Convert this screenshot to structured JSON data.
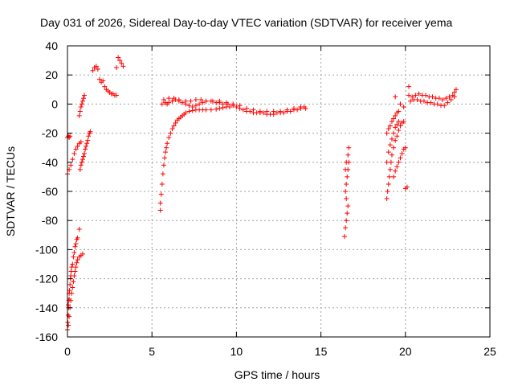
{
  "chart_data": {
    "type": "scatter",
    "title": "Day 031 of 2026, Sidereal Day-to-day VTEC variation (SDTVAR) for receiver yema",
    "xlabel": "GPS time / hours",
    "ylabel": "SDTVAR / TECUs",
    "xlim": [
      0,
      25
    ],
    "ylim": [
      -160,
      40
    ],
    "xticks": [
      0,
      5,
      10,
      15,
      20,
      25
    ],
    "yticks": [
      -160,
      -140,
      -120,
      -100,
      -80,
      -60,
      -40,
      -20,
      0,
      20,
      40
    ],
    "grid": true,
    "marker": "plus",
    "series": [
      {
        "name": "SDTVAR",
        "color": "#ff0000",
        "points": [
          [
            0.0,
            -23
          ],
          [
            0.05,
            -22
          ],
          [
            0.1,
            -23
          ],
          [
            0.15,
            -22
          ],
          [
            0.0,
            -48
          ],
          [
            0.1,
            -45
          ],
          [
            0.2,
            -42
          ],
          [
            0.3,
            -38
          ],
          [
            0.4,
            -34
          ],
          [
            0.5,
            -31
          ],
          [
            0.6,
            -29
          ],
          [
            0.7,
            -27
          ],
          [
            0.8,
            -26
          ],
          [
            0.0,
            -155
          ],
          [
            0.02,
            -150
          ],
          [
            0.04,
            -145
          ],
          [
            0.06,
            -140
          ],
          [
            0.08,
            -135
          ],
          [
            0.1,
            -130
          ],
          [
            0.12,
            -128
          ],
          [
            0.15,
            -124
          ],
          [
            0.18,
            -120
          ],
          [
            0.2,
            -118
          ],
          [
            0.22,
            -115
          ],
          [
            0.25,
            -112
          ],
          [
            0.3,
            -110
          ],
          [
            0.35,
            -105
          ],
          [
            0.4,
            -102
          ],
          [
            0.45,
            -98
          ],
          [
            0.5,
            -96
          ],
          [
            0.55,
            -93
          ],
          [
            0.6,
            -92
          ],
          [
            0.05,
            -152
          ],
          [
            0.1,
            -146
          ],
          [
            0.15,
            -140
          ],
          [
            0.2,
            -135
          ],
          [
            0.25,
            -130
          ],
          [
            0.3,
            -126
          ],
          [
            0.35,
            -122
          ],
          [
            0.4,
            -118
          ],
          [
            0.45,
            -115
          ],
          [
            0.5,
            -112
          ],
          [
            0.55,
            -109
          ],
          [
            0.6,
            -107
          ],
          [
            0.7,
            -105
          ],
          [
            0.8,
            -104
          ],
          [
            0.9,
            -103
          ],
          [
            0.7,
            -86
          ],
          [
            0.05,
            -138
          ],
          [
            0.1,
            -134
          ],
          [
            0.75,
            -45
          ],
          [
            0.8,
            -42
          ],
          [
            0.85,
            -40
          ],
          [
            0.9,
            -38
          ],
          [
            0.95,
            -36
          ],
          [
            1.0,
            -34
          ],
          [
            1.05,
            -31
          ],
          [
            1.1,
            -29
          ],
          [
            1.15,
            -27
          ],
          [
            1.2,
            -25
          ],
          [
            1.25,
            -22
          ],
          [
            1.3,
            -20
          ],
          [
            1.35,
            -19
          ],
          [
            0.7,
            -8
          ],
          [
            0.75,
            -5
          ],
          [
            0.8,
            -2
          ],
          [
            0.85,
            0
          ],
          [
            0.9,
            2
          ],
          [
            0.95,
            4
          ],
          [
            1.0,
            6
          ],
          [
            1.5,
            23
          ],
          [
            1.6,
            25
          ],
          [
            1.7,
            26
          ],
          [
            1.8,
            24
          ],
          [
            1.9,
            17
          ],
          [
            2.0,
            15
          ],
          [
            2.1,
            16
          ],
          [
            2.2,
            12
          ],
          [
            2.3,
            10
          ],
          [
            2.4,
            9
          ],
          [
            2.5,
            8
          ],
          [
            2.6,
            7
          ],
          [
            2.7,
            7
          ],
          [
            2.8,
            6
          ],
          [
            2.9,
            6
          ],
          [
            2.9,
            25
          ],
          [
            3.0,
            32
          ],
          [
            3.1,
            30
          ],
          [
            3.2,
            28
          ],
          [
            3.3,
            26
          ],
          [
            5.5,
            -73
          ],
          [
            5.5,
            -68
          ],
          [
            5.55,
            -62
          ],
          [
            5.6,
            -55
          ],
          [
            5.65,
            -48
          ],
          [
            5.7,
            -42
          ],
          [
            5.75,
            -37
          ],
          [
            5.8,
            -33
          ],
          [
            5.85,
            -30
          ],
          [
            5.9,
            -27
          ],
          [
            6.0,
            -23
          ],
          [
            6.1,
            -20
          ],
          [
            6.2,
            -17
          ],
          [
            6.3,
            -15
          ],
          [
            6.4,
            -13
          ],
          [
            6.5,
            -11
          ],
          [
            6.6,
            -10
          ],
          [
            6.7,
            -9
          ],
          [
            6.8,
            -8
          ],
          [
            6.9,
            -7
          ],
          [
            7.0,
            -6
          ],
          [
            7.2,
            -5
          ],
          [
            7.4,
            -4.5
          ],
          [
            7.6,
            -4
          ],
          [
            7.8,
            -4
          ],
          [
            8.0,
            -4
          ],
          [
            8.2,
            -4
          ],
          [
            8.5,
            -4
          ],
          [
            8.8,
            -3.5
          ],
          [
            9.0,
            -3
          ],
          [
            9.2,
            -2.5
          ],
          [
            9.4,
            -2
          ],
          [
            9.6,
            -2
          ],
          [
            5.6,
            0
          ],
          [
            5.7,
            3
          ],
          [
            5.8,
            1
          ],
          [
            5.9,
            0
          ],
          [
            6.0,
            1
          ],
          [
            6.2,
            2
          ],
          [
            6.4,
            3
          ],
          [
            6.6,
            2
          ],
          [
            6.8,
            1
          ],
          [
            7.0,
            0
          ],
          [
            7.2,
            -1
          ],
          [
            7.4,
            -2
          ],
          [
            7.6,
            -1
          ],
          [
            7.8,
            0
          ],
          [
            8.0,
            1
          ],
          [
            8.2,
            2
          ],
          [
            8.5,
            2
          ],
          [
            8.8,
            1
          ],
          [
            9.0,
            1
          ],
          [
            9.2,
            0
          ],
          [
            9.5,
            0
          ],
          [
            9.8,
            -1
          ],
          [
            10.0,
            -2
          ],
          [
            10.2,
            -3
          ],
          [
            10.4,
            -4
          ],
          [
            10.6,
            -5
          ],
          [
            10.8,
            -5
          ],
          [
            11.0,
            -6
          ],
          [
            11.2,
            -6
          ],
          [
            11.4,
            -6
          ],
          [
            11.6,
            -6
          ],
          [
            11.8,
            -7
          ],
          [
            12.0,
            -7
          ],
          [
            12.2,
            -7
          ],
          [
            12.4,
            -6
          ],
          [
            12.6,
            -6
          ],
          [
            12.8,
            -6
          ],
          [
            13.0,
            -5
          ],
          [
            13.2,
            -5
          ],
          [
            13.4,
            -4
          ],
          [
            13.6,
            -4
          ],
          [
            13.8,
            -3
          ],
          [
            14.0,
            -2
          ],
          [
            14.1,
            -3
          ],
          [
            6.0,
            4
          ],
          [
            6.3,
            4
          ],
          [
            6.6,
            3
          ],
          [
            7.0,
            2
          ],
          [
            7.3,
            2
          ],
          [
            7.6,
            3
          ],
          [
            7.9,
            3
          ],
          [
            8.2,
            2
          ],
          [
            8.6,
            2
          ],
          [
            9.0,
            2
          ],
          [
            9.4,
            1
          ],
          [
            9.8,
            0
          ],
          [
            10.2,
            -1
          ],
          [
            10.6,
            -3
          ],
          [
            11.0,
            -4
          ],
          [
            11.4,
            -5
          ],
          [
            11.8,
            -5
          ],
          [
            12.2,
            -5
          ],
          [
            12.6,
            -5
          ],
          [
            13.0,
            -4
          ],
          [
            13.4,
            -3
          ],
          [
            13.8,
            -2
          ],
          [
            16.4,
            -91
          ],
          [
            16.45,
            -85
          ],
          [
            16.5,
            -80
          ],
          [
            16.55,
            -75
          ],
          [
            16.6,
            -70
          ],
          [
            16.5,
            -65
          ],
          [
            16.45,
            -60
          ],
          [
            16.5,
            -55
          ],
          [
            16.55,
            -50
          ],
          [
            16.6,
            -45
          ],
          [
            16.65,
            -40
          ],
          [
            16.6,
            -35
          ],
          [
            16.65,
            -30
          ],
          [
            16.5,
            -40
          ],
          [
            16.45,
            -45
          ],
          [
            18.9,
            -65
          ],
          [
            18.95,
            -60
          ],
          [
            19.0,
            -55
          ],
          [
            19.05,
            -50
          ],
          [
            19.1,
            -45
          ],
          [
            19.15,
            -40
          ],
          [
            19.2,
            -35
          ],
          [
            19.3,
            -30
          ],
          [
            19.4,
            -25
          ],
          [
            19.5,
            -22
          ],
          [
            19.6,
            -18
          ],
          [
            19.7,
            -15
          ],
          [
            19.8,
            -13
          ],
          [
            19.9,
            -12
          ],
          [
            18.9,
            -40
          ],
          [
            19.0,
            -33
          ],
          [
            19.1,
            -28
          ],
          [
            19.2,
            -24
          ],
          [
            19.3,
            -20
          ],
          [
            19.4,
            -16
          ],
          [
            19.5,
            -14
          ],
          [
            19.6,
            -12
          ],
          [
            18.9,
            -20
          ],
          [
            19.0,
            -17
          ],
          [
            19.1,
            -15
          ],
          [
            19.2,
            -12
          ],
          [
            19.3,
            -10
          ],
          [
            19.4,
            -8
          ],
          [
            19.5,
            -6
          ],
          [
            19.6,
            -5
          ],
          [
            19.3,
            -50
          ],
          [
            19.4,
            -46
          ],
          [
            19.5,
            -43
          ],
          [
            19.6,
            -40
          ],
          [
            19.7,
            -37
          ],
          [
            19.8,
            -34
          ],
          [
            19.9,
            -31
          ],
          [
            20.0,
            -30
          ],
          [
            19.4,
            5
          ],
          [
            19.7,
            0
          ],
          [
            19.9,
            -2
          ],
          [
            20.0,
            -58
          ],
          [
            20.1,
            -57
          ],
          [
            20.2,
            12
          ],
          [
            20.2,
            6
          ],
          [
            20.4,
            5
          ],
          [
            20.6,
            6
          ],
          [
            20.8,
            7
          ],
          [
            21.0,
            6
          ],
          [
            21.2,
            6
          ],
          [
            21.4,
            5
          ],
          [
            21.6,
            5
          ],
          [
            21.8,
            4
          ],
          [
            22.0,
            4
          ],
          [
            22.2,
            3
          ],
          [
            22.4,
            4
          ],
          [
            22.6,
            5
          ],
          [
            22.8,
            6
          ],
          [
            22.9,
            8
          ],
          [
            23.0,
            10
          ],
          [
            20.3,
            2
          ],
          [
            20.5,
            3
          ],
          [
            20.7,
            3
          ],
          [
            20.9,
            2
          ],
          [
            21.1,
            2
          ],
          [
            21.3,
            1
          ],
          [
            21.5,
            1
          ],
          [
            21.7,
            0
          ],
          [
            21.9,
            0
          ],
          [
            22.1,
            -1
          ],
          [
            22.3,
            -1
          ],
          [
            22.5,
            1
          ],
          [
            22.7,
            3
          ],
          [
            22.9,
            5
          ]
        ]
      }
    ]
  }
}
